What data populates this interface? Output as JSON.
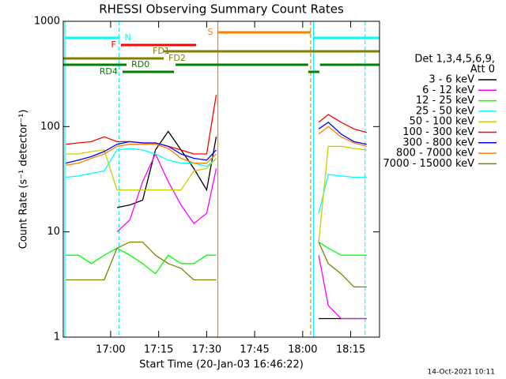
{
  "chart_data": {
    "type": "line",
    "title": "RHESSI Observing Summary Count Rates",
    "x_label": "Start Time (20-Jan-03 16:46:22)",
    "y_label": "Count Rate (s⁻¹ detector⁻¹)",
    "log_y": true,
    "xlim": [
      1005.2,
      1104
    ],
    "ylim": [
      1,
      1000
    ],
    "xticks": [
      {
        "value": 1020,
        "label": "17:00"
      },
      {
        "value": 1035,
        "label": "17:15"
      },
      {
        "value": 1050,
        "label": "17:30"
      },
      {
        "value": 1065,
        "label": "17:45"
      },
      {
        "value": 1080,
        "label": "18:00"
      },
      {
        "value": 1095,
        "label": "18:15"
      }
    ],
    "yticks": [
      1,
      10,
      100,
      1000
    ],
    "legend_header": [
      "Det 1,3,4,5,6,9,",
      "Att 0"
    ],
    "x": [
      1006,
      1010,
      1014,
      1018,
      1022,
      1026,
      1030,
      1034,
      1038,
      1042,
      1046,
      1050,
      1053,
      1070,
      1085,
      1088,
      1092,
      1096,
      1100
    ],
    "series": [
      {
        "name": "3 - 6 keV",
        "color": "#000000",
        "values": [
          null,
          null,
          null,
          null,
          17,
          18,
          20,
          60,
          90,
          60,
          40,
          25,
          80,
          null,
          1.5,
          1.5,
          1.5,
          1.5,
          1.5
        ]
      },
      {
        "name": "6 - 12 keV",
        "color": "#ff00ff",
        "values": [
          null,
          null,
          null,
          null,
          10,
          13,
          30,
          55,
          30,
          18,
          12,
          15,
          40,
          null,
          6,
          2,
          1.5,
          1.5,
          1.5
        ]
      },
      {
        "name": "12 - 25 keV",
        "color": "#00ff00",
        "values": [
          6,
          6,
          5,
          6,
          7,
          6,
          5,
          4,
          6,
          5,
          5,
          6,
          6,
          null,
          8,
          7,
          6,
          6,
          6
        ]
      },
      {
        "name": "25 - 50 keV",
        "color": "#00ffff",
        "values": [
          33,
          34,
          36,
          38,
          60,
          62,
          60,
          55,
          48,
          45,
          45,
          42,
          50,
          null,
          15,
          35,
          34,
          33,
          33
        ]
      },
      {
        "name": "50 - 100 keV",
        "color": "#cccc00",
        "values": [
          55,
          55,
          58,
          60,
          25,
          25,
          25,
          25,
          25,
          25,
          38,
          40,
          50,
          null,
          8,
          65,
          65,
          62,
          60
        ]
      },
      {
        "name": "100 - 300 keV",
        "color": "#ff0000",
        "values": [
          68,
          70,
          72,
          80,
          72,
          72,
          70,
          70,
          65,
          60,
          55,
          55,
          200,
          null,
          110,
          130,
          110,
          95,
          88
        ]
      },
      {
        "name": "300 - 800 keV",
        "color": "#0000ff",
        "values": [
          45,
          48,
          52,
          58,
          68,
          72,
          70,
          70,
          65,
          55,
          50,
          48,
          60,
          null,
          95,
          110,
          85,
          72,
          68
        ]
      },
      {
        "name": "800 - 7000 keV",
        "color": "#ff8000",
        "values": [
          43,
          45,
          50,
          55,
          65,
          68,
          68,
          68,
          62,
          50,
          45,
          45,
          55,
          null,
          85,
          100,
          80,
          70,
          65
        ]
      },
      {
        "name": "7000 - 15000 keV",
        "color": "#808000",
        "values": [
          3.5,
          3.5,
          3.5,
          3.5,
          7,
          8,
          8,
          6,
          5,
          4.5,
          3.5,
          3.5,
          3.5,
          null,
          8,
          5,
          4,
          3,
          3
        ]
      }
    ],
    "intervals": [
      {
        "label": "N",
        "color": "#00ffff",
        "start": 1005.7,
        "end": 1022.9
      },
      {
        "color": "#00ffff",
        "start": 1083.2,
        "end": 1104
      },
      {
        "label": "S",
        "color": "#ff8000",
        "start": 1053.5,
        "end": 1082.5
      },
      {
        "label": "F",
        "color": "#ff0000",
        "start": 1023.2,
        "end": 1046.7
      },
      {
        "label": "FD1",
        "color": "#808000",
        "start": 1036.6,
        "end": 1104
      },
      {
        "label": "FD2",
        "color": "#808000",
        "start": 1005.2,
        "end": 1036.6
      },
      {
        "label": "RD0",
        "color": "#008000",
        "start": 1005.2,
        "end": 1025.0
      },
      {
        "color": "#008000",
        "start": 1040.3,
        "end": 1081.7
      },
      {
        "color": "#008000",
        "start": 1085.4,
        "end": 1104
      },
      {
        "label": "RD4",
        "color": "#008000",
        "start": 1023.7,
        "end": 1039.8
      },
      {
        "color": "#008000",
        "start": 1081.7,
        "end": 1085.2
      }
    ],
    "markers": [
      {
        "x": 1005.7,
        "color": "#00ffff",
        "dashed": false
      },
      {
        "x": 1022.6,
        "color": "#00ffff",
        "dashed": true
      },
      {
        "x": 1053.5,
        "color": "#ff8000",
        "dashed": false
      },
      {
        "x": 1082.5,
        "color": "#ff8000",
        "dashed": true
      },
      {
        "x": 1083.4,
        "color": "#00ffff",
        "dashed": false
      },
      {
        "x": 1099.5,
        "color": "#00ffff",
        "dashed": true
      }
    ],
    "footer": "14-Oct-2021 10:11"
  }
}
